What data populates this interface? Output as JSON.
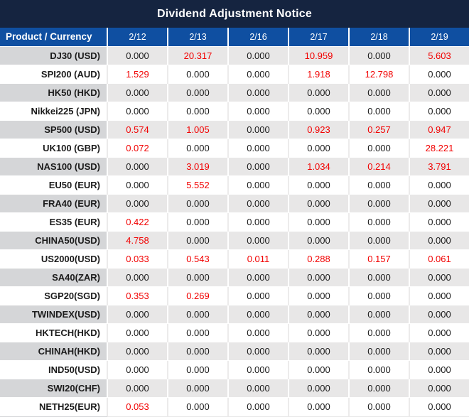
{
  "title": "Dividend Adjustment Notice",
  "table": {
    "product_header": "Product / Currency",
    "date_headers": [
      "2/12",
      "2/13",
      "2/16",
      "2/17",
      "2/18",
      "2/19"
    ],
    "rows": [
      {
        "product": "DJ30 (USD)",
        "values": [
          "0.000",
          "20.317",
          "0.000",
          "10.959",
          "0.000",
          "5.603"
        ]
      },
      {
        "product": "SPI200 (AUD)",
        "values": [
          "1.529",
          "0.000",
          "0.000",
          "1.918",
          "12.798",
          "0.000"
        ]
      },
      {
        "product": "HK50 (HKD)",
        "values": [
          "0.000",
          "0.000",
          "0.000",
          "0.000",
          "0.000",
          "0.000"
        ]
      },
      {
        "product": "Nikkei225 (JPN)",
        "values": [
          "0.000",
          "0.000",
          "0.000",
          "0.000",
          "0.000",
          "0.000"
        ]
      },
      {
        "product": "SP500 (USD)",
        "values": [
          "0.574",
          "1.005",
          "0.000",
          "0.923",
          "0.257",
          "0.947"
        ]
      },
      {
        "product": "UK100 (GBP)",
        "values": [
          "0.072",
          "0.000",
          "0.000",
          "0.000",
          "0.000",
          "28.221"
        ]
      },
      {
        "product": "NAS100 (USD)",
        "values": [
          "0.000",
          "3.019",
          "0.000",
          "1.034",
          "0.214",
          "3.791"
        ]
      },
      {
        "product": "EU50 (EUR)",
        "values": [
          "0.000",
          "5.552",
          "0.000",
          "0.000",
          "0.000",
          "0.000"
        ]
      },
      {
        "product": "FRA40 (EUR)",
        "values": [
          "0.000",
          "0.000",
          "0.000",
          "0.000",
          "0.000",
          "0.000"
        ]
      },
      {
        "product": "ES35 (EUR)",
        "values": [
          "0.422",
          "0.000",
          "0.000",
          "0.000",
          "0.000",
          "0.000"
        ]
      },
      {
        "product": "CHINA50(USD)",
        "values": [
          "4.758",
          "0.000",
          "0.000",
          "0.000",
          "0.000",
          "0.000"
        ]
      },
      {
        "product": "US2000(USD)",
        "values": [
          "0.033",
          "0.543",
          "0.011",
          "0.288",
          "0.157",
          "0.061"
        ]
      },
      {
        "product": "SA40(ZAR)",
        "values": [
          "0.000",
          "0.000",
          "0.000",
          "0.000",
          "0.000",
          "0.000"
        ]
      },
      {
        "product": "SGP20(SGD)",
        "values": [
          "0.353",
          "0.269",
          "0.000",
          "0.000",
          "0.000",
          "0.000"
        ]
      },
      {
        "product": "TWINDEX(USD)",
        "values": [
          "0.000",
          "0.000",
          "0.000",
          "0.000",
          "0.000",
          "0.000"
        ]
      },
      {
        "product": "HKTECH(HKD)",
        "values": [
          "0.000",
          "0.000",
          "0.000",
          "0.000",
          "0.000",
          "0.000"
        ]
      },
      {
        "product": "CHINAH(HKD)",
        "values": [
          "0.000",
          "0.000",
          "0.000",
          "0.000",
          "0.000",
          "0.000"
        ]
      },
      {
        "product": "IND50(USD)",
        "values": [
          "0.000",
          "0.000",
          "0.000",
          "0.000",
          "0.000",
          "0.000"
        ]
      },
      {
        "product": "SWI20(CHF)",
        "values": [
          "0.000",
          "0.000",
          "0.000",
          "0.000",
          "0.000",
          "0.000"
        ]
      },
      {
        "product": "NETH25(EUR)",
        "values": [
          "0.053",
          "0.000",
          "0.000",
          "0.000",
          "0.000",
          "0.000"
        ]
      }
    ]
  },
  "colors": {
    "title_bg": "#152440",
    "header_bg": "#0F4FA1",
    "shaded_product_bg": "#D5D6D8",
    "shaded_value_bg": "#E8E7E7",
    "plain_row_bg": "#FFFFFF",
    "nonzero_value_red": "#F20000",
    "zero_value_text": "#1B1B1B",
    "header_text": "#FFFFFF"
  }
}
